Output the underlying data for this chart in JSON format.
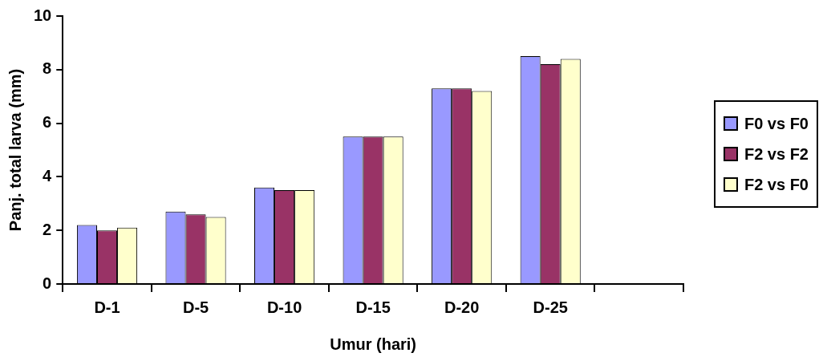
{
  "chart_data": {
    "type": "bar",
    "xlabel": "Umur (hari)",
    "ylabel": "Panj. total larva (mm)",
    "categories": [
      "D-1",
      "D-5",
      "D-10",
      "D-15",
      "D-20",
      "D-25",
      null
    ],
    "series": [
      {
        "name": "F0 vs F0",
        "color": "#9999ff",
        "values": [
          2.2,
          2.7,
          3.6,
          5.5,
          7.3,
          8.5,
          null
        ]
      },
      {
        "name": "F2 vs F2",
        "color": "#993366",
        "values": [
          2.0,
          2.6,
          3.5,
          5.5,
          7.3,
          8.2,
          null
        ]
      },
      {
        "name": "F2 vs F0",
        "color": "#ffffcc",
        "values": [
          2.1,
          2.5,
          3.5,
          5.5,
          7.2,
          8.4,
          null
        ]
      }
    ],
    "ylim": [
      0,
      10
    ],
    "yticks": [
      0,
      2,
      4,
      6,
      8,
      10
    ],
    "grid": false,
    "legend": "right"
  }
}
